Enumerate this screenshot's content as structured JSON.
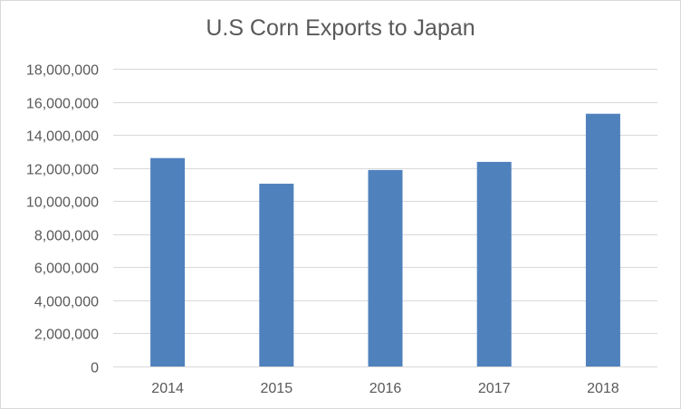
{
  "chart_data": {
    "type": "bar",
    "title": "U.S Corn Exports to Japan",
    "categories": [
      "2014",
      "2015",
      "2016",
      "2017",
      "2018"
    ],
    "values": [
      12600000,
      11050000,
      11880000,
      12370000,
      15280000
    ],
    "xlabel": "",
    "ylabel": "",
    "ylim": [
      0,
      18000000
    ],
    "yticks": [
      0,
      2000000,
      4000000,
      6000000,
      8000000,
      10000000,
      12000000,
      14000000,
      16000000,
      18000000
    ],
    "ytick_labels": [
      "0",
      "2,000,000",
      "4,000,000",
      "6,000,000",
      "8,000,000",
      "10,000,000",
      "12,000,000",
      "14,000,000",
      "16,000,000",
      "18,000,000"
    ],
    "grid": true,
    "legend": "none",
    "colors": {
      "bar": "#4f81bd",
      "grid": "#d9d9d9",
      "text": "#595959"
    }
  }
}
